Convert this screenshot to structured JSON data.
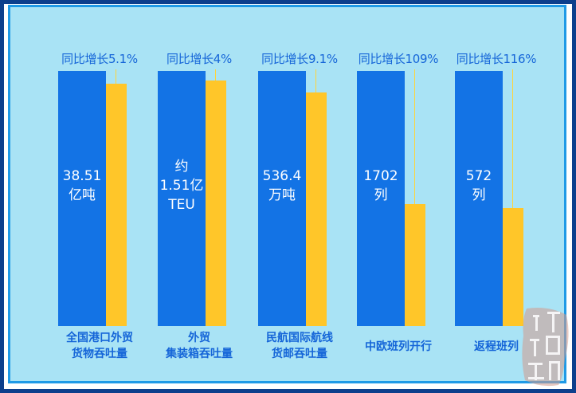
{
  "chart_data": {
    "type": "bar",
    "categories": [
      [
        "全国港口外贸",
        "货物吞吐量"
      ],
      [
        "外贸",
        "集装箱吞吐量"
      ],
      [
        "民航国际航线",
        "货邮吞吐量"
      ],
      [
        "中欧班列开行"
      ],
      [
        "返程班列"
      ]
    ],
    "values": [
      [
        "38.51",
        "亿吨"
      ],
      [
        "约",
        "1.51亿",
        "TEU"
      ],
      [
        "536.4",
        "万吨"
      ],
      [
        "1702",
        "列"
      ],
      [
        "572",
        "列"
      ]
    ],
    "growth_labels": [
      "同比增长5.1%",
      "同比增长4%",
      "同比增长9.1%",
      "同比增长109%",
      "同比增长116%"
    ],
    "growth_percent": [
      5.1,
      4,
      9.1,
      109,
      116
    ]
  },
  "colors": {
    "current_bar": "#1373e5",
    "growth_bar": "#ffc629",
    "background": "#a9e3f5",
    "text": "#1565d8"
  },
  "watermark": "订阅酒运网"
}
